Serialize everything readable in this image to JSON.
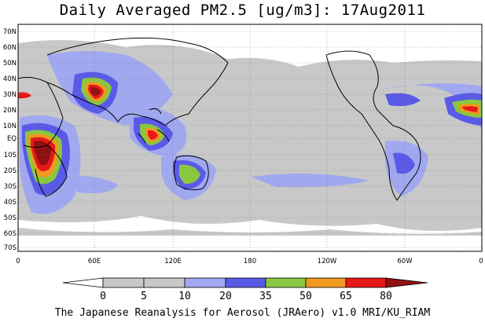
{
  "title": "Daily Averaged PM2.5 [ug/m3]: 17Aug2011",
  "credit": "The Japanese Reanalysis for Aerosol (JRAero) v1.0 MRI/KU_RIAM",
  "map": {
    "projection": "equirectangular",
    "longitude_range": [
      0,
      360
    ],
    "latitude_range": [
      -75,
      75
    ],
    "lat_labels": [
      "70N",
      "60N",
      "50N",
      "40N",
      "30N",
      "20N",
      "10N",
      "EQ",
      "10S",
      "20S",
      "30S",
      "40S",
      "50S",
      "60S",
      "70S"
    ],
    "lon_labels": [
      "0",
      "60E",
      "120E",
      "180",
      "120W",
      "60W",
      "0"
    ]
  },
  "colorbar": {
    "levels": [
      "0",
      "5",
      "10",
      "20",
      "35",
      "50",
      "65",
      "80"
    ],
    "colors": [
      "#ffffff",
      "#c8c8c8",
      "#a0a8f0",
      "#5a5ae8",
      "#88c840",
      "#f09820",
      "#e81818",
      "#901010"
    ]
  }
}
